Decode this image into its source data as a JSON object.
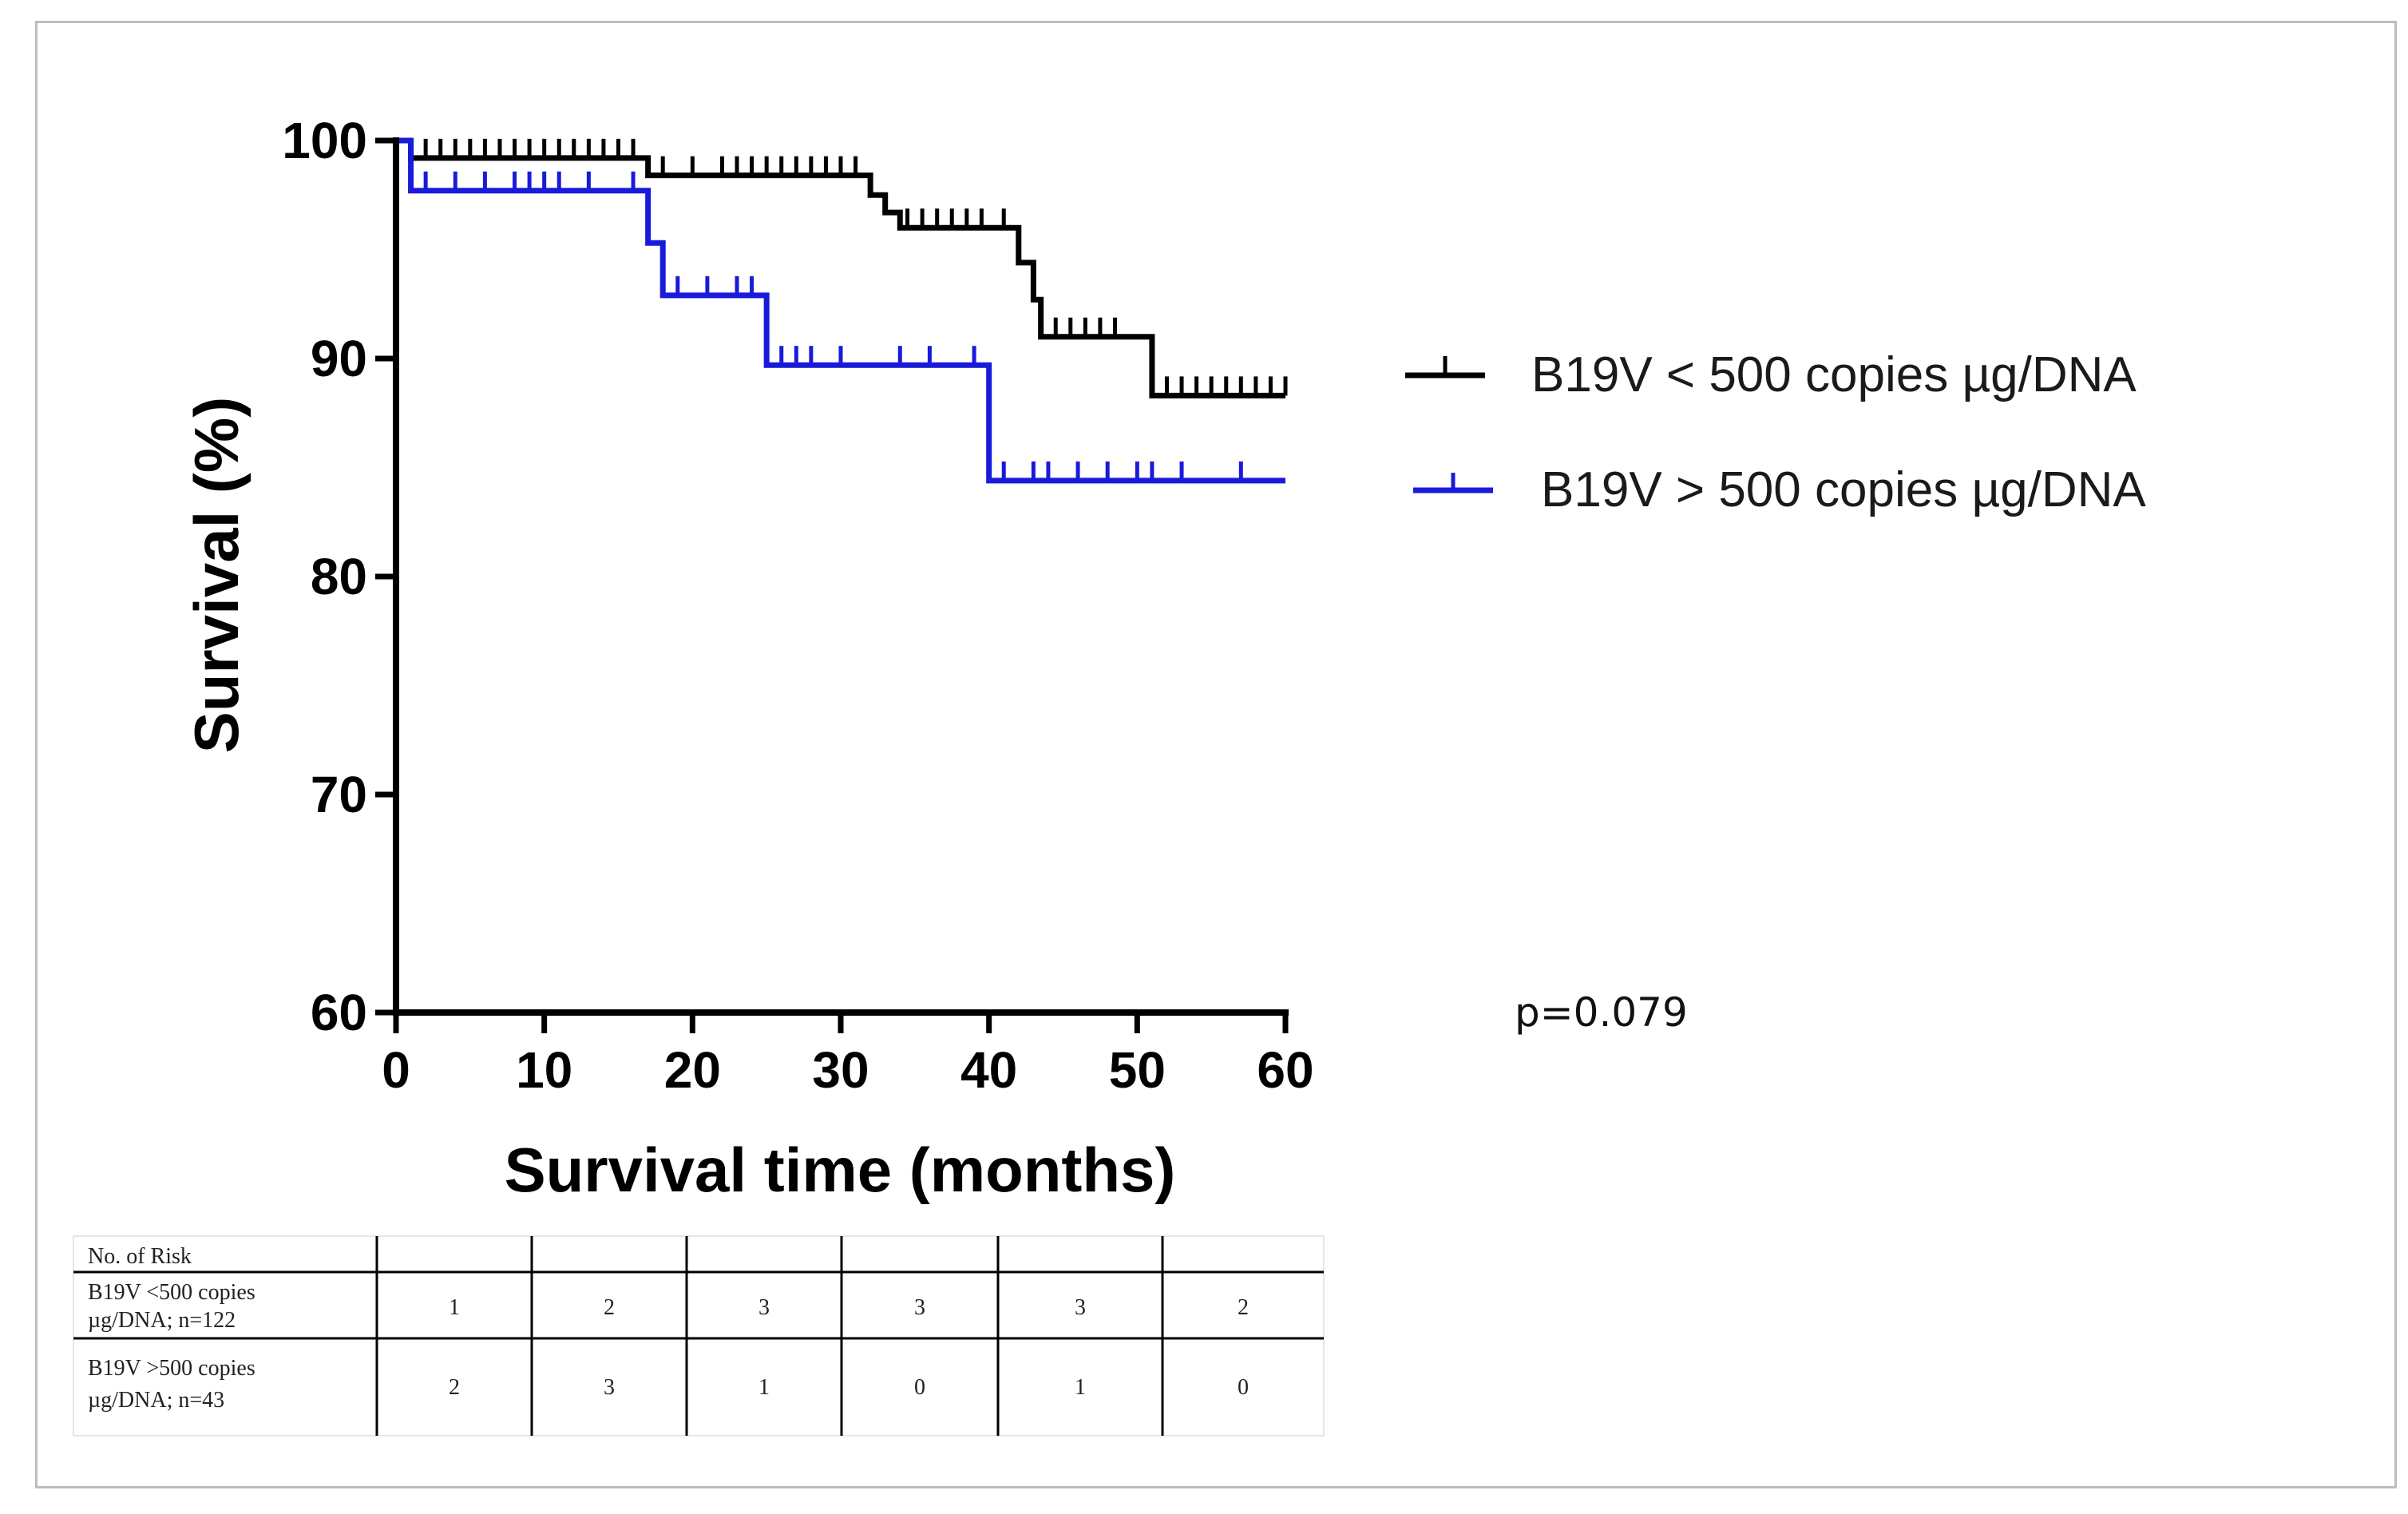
{
  "chart_data": {
    "type": "line",
    "subtype": "kaplan-meier",
    "xlabel": "Survival time (months)",
    "ylabel": "Survival (%)",
    "xlim": [
      0,
      60
    ],
    "ylim": [
      60,
      100
    ],
    "x_ticks": [
      0,
      10,
      20,
      30,
      40,
      50,
      60
    ],
    "y_ticks": [
      60,
      70,
      80,
      90,
      100
    ],
    "legend_position": "right",
    "p_value_text": "p=0.079",
    "series": [
      {
        "name": "B19V < 500 copies µg/DNA",
        "color": "#000000",
        "steps": [
          [
            0,
            100
          ],
          [
            1,
            99.2
          ],
          [
            17,
            98.4
          ],
          [
            32,
            97.5
          ],
          [
            33,
            96.7
          ],
          [
            34,
            96.0
          ],
          [
            42,
            94.4
          ],
          [
            43,
            92.7
          ],
          [
            43.5,
            91.0
          ],
          [
            51,
            88.3
          ],
          [
            60,
            88.3
          ]
        ],
        "censored": [
          [
            2,
            99.2
          ],
          [
            3,
            99.2
          ],
          [
            4,
            99.2
          ],
          [
            5,
            99.2
          ],
          [
            6,
            99.2
          ],
          [
            7,
            99.2
          ],
          [
            8,
            99.2
          ],
          [
            9,
            99.2
          ],
          [
            10,
            99.2
          ],
          [
            11,
            99.2
          ],
          [
            12,
            99.2
          ],
          [
            13,
            99.2
          ],
          [
            14,
            99.2
          ],
          [
            15,
            99.2
          ],
          [
            16,
            99.2
          ],
          [
            18,
            98.4
          ],
          [
            20,
            98.4
          ],
          [
            22,
            98.4
          ],
          [
            23,
            98.4
          ],
          [
            24,
            98.4
          ],
          [
            25,
            98.4
          ],
          [
            26,
            98.4
          ],
          [
            27,
            98.4
          ],
          [
            28,
            98.4
          ],
          [
            29,
            98.4
          ],
          [
            30,
            98.4
          ],
          [
            31,
            98.4
          ],
          [
            34.5,
            96.0
          ],
          [
            35.5,
            96.0
          ],
          [
            36.5,
            96.0
          ],
          [
            37.5,
            96.0
          ],
          [
            38.5,
            96.0
          ],
          [
            39.5,
            96.0
          ],
          [
            41,
            96.0
          ],
          [
            44.5,
            91.0
          ],
          [
            45.5,
            91.0
          ],
          [
            46.5,
            91.0
          ],
          [
            47.5,
            91.0
          ],
          [
            48.5,
            91.0
          ],
          [
            52,
            88.3
          ],
          [
            53,
            88.3
          ],
          [
            54,
            88.3
          ],
          [
            55,
            88.3
          ],
          [
            56,
            88.3
          ],
          [
            57,
            88.3
          ],
          [
            58,
            88.3
          ],
          [
            59,
            88.3
          ],
          [
            60,
            88.3
          ]
        ]
      },
      {
        "name": "B19V > 500 copies µg/DNA",
        "color": "#1a1adb",
        "steps": [
          [
            0,
            100
          ],
          [
            1,
            97.7
          ],
          [
            17,
            95.3
          ],
          [
            18,
            92.9
          ],
          [
            25,
            89.7
          ],
          [
            40,
            84.4
          ],
          [
            60,
            84.4
          ]
        ],
        "censored": [
          [
            2,
            97.7
          ],
          [
            4,
            97.7
          ],
          [
            6,
            97.7
          ],
          [
            8,
            97.7
          ],
          [
            9,
            97.7
          ],
          [
            10,
            97.7
          ],
          [
            11,
            97.7
          ],
          [
            13,
            97.7
          ],
          [
            16,
            97.7
          ],
          [
            19,
            92.9
          ],
          [
            21,
            92.9
          ],
          [
            23,
            92.9
          ],
          [
            24,
            92.9
          ],
          [
            26,
            89.7
          ],
          [
            27,
            89.7
          ],
          [
            28,
            89.7
          ],
          [
            30,
            89.7
          ],
          [
            34,
            89.7
          ],
          [
            36,
            89.7
          ],
          [
            39,
            89.7
          ],
          [
            41,
            84.4
          ],
          [
            43,
            84.4
          ],
          [
            44,
            84.4
          ],
          [
            46,
            84.4
          ],
          [
            48,
            84.4
          ],
          [
            50,
            84.4
          ],
          [
            51,
            84.4
          ],
          [
            53,
            84.4
          ],
          [
            57,
            84.4
          ]
        ]
      }
    ],
    "risk_table": {
      "header": "No. of Risk",
      "rows": [
        {
          "label_line1": "B19V <500 copies",
          "label_line2": "µg/DNA; n=122",
          "values": [
            1,
            2,
            3,
            3,
            3,
            2
          ]
        },
        {
          "label_line1": "B19V >500 copies",
          "label_line2": "µg/DNA; n=43",
          "values": [
            2,
            3,
            1,
            0,
            1,
            0
          ]
        }
      ]
    }
  }
}
